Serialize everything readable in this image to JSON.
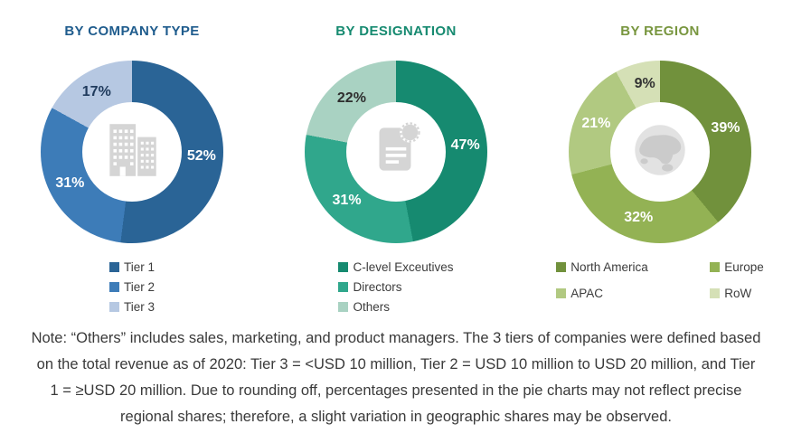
{
  "chart_data": [
    {
      "type": "pie",
      "title": "BY COMPANY TYPE",
      "title_color": "#1F5C8D",
      "center_icon": "building-icon",
      "legend_layout": "vertical",
      "categories": [
        "Tier 1",
        "Tier 2",
        "Tier 3"
      ],
      "values": [
        52,
        31,
        17
      ],
      "slices": [
        {
          "label": "Tier 1",
          "value": 52,
          "value_label": "52%",
          "color": "#2A6496",
          "value_label_color": "#FFFFFF"
        },
        {
          "label": "Tier 2",
          "value": 31,
          "value_label": "31%",
          "color": "#3D7CB8",
          "value_label_color": "#FFFFFF"
        },
        {
          "label": "Tier 3",
          "value": 17,
          "value_label": "17%",
          "color": "#B6C8E2",
          "value_label_color": "#1F3A5C"
        }
      ]
    },
    {
      "type": "pie",
      "title": "BY DESIGNATION",
      "title_color": "#168A70",
      "center_icon": "document-certificate-icon",
      "legend_layout": "vertical",
      "categories": [
        "C-level Exceutives",
        "Directors",
        "Others"
      ],
      "values": [
        47,
        31,
        22
      ],
      "slices": [
        {
          "label": "C-level Exceutives",
          "value": 47,
          "value_label": "47%",
          "color": "#168A70",
          "value_label_color": "#FFFFFF"
        },
        {
          "label": "Directors",
          "value": 31,
          "value_label": "31%",
          "color": "#30A78C",
          "value_label_color": "#FFFFFF"
        },
        {
          "label": "Others",
          "value": 22,
          "value_label": "22%",
          "color": "#A9D2C2",
          "value_label_color": "#2E2E2E"
        }
      ]
    },
    {
      "type": "pie",
      "title": "BY REGION",
      "title_color": "#78963F",
      "center_icon": "globe-icon",
      "legend_layout": "grid",
      "categories": [
        "North America",
        "Europe",
        "APAC",
        "RoW"
      ],
      "values": [
        39,
        32,
        21,
        9
      ],
      "slices": [
        {
          "label": "North America",
          "value": 39,
          "value_label": "39%",
          "color": "#71913C",
          "value_label_color": "#FFFFFF"
        },
        {
          "label": "Europe",
          "value": 32,
          "value_label": "32%",
          "color": "#93B254",
          "value_label_color": "#FFFFFF"
        },
        {
          "label": "APAC",
          "value": 21,
          "value_label": "21%",
          "color": "#B1C981",
          "value_label_color": "#FFFFFF"
        },
        {
          "label": "RoW",
          "value": 9,
          "value_label": "9%",
          "color": "#D5E0B6",
          "value_label_color": "#333333"
        }
      ]
    }
  ],
  "note": {
    "lines": [
      "Note: “Others” includes sales, marketing, and product managers. The 3 tiers of companies were defined based",
      "on the total revenue as of 2020: Tier 3 = <USD 10 million, Tier 2 = USD 10 million to USD 20 million, and Tier",
      "1 = ≥USD 20 million. Due to rounding off, percentages presented in the pie charts may not reflect precise",
      "regional shares; therefore, a slight variation in geographic shares may be observed."
    ]
  }
}
